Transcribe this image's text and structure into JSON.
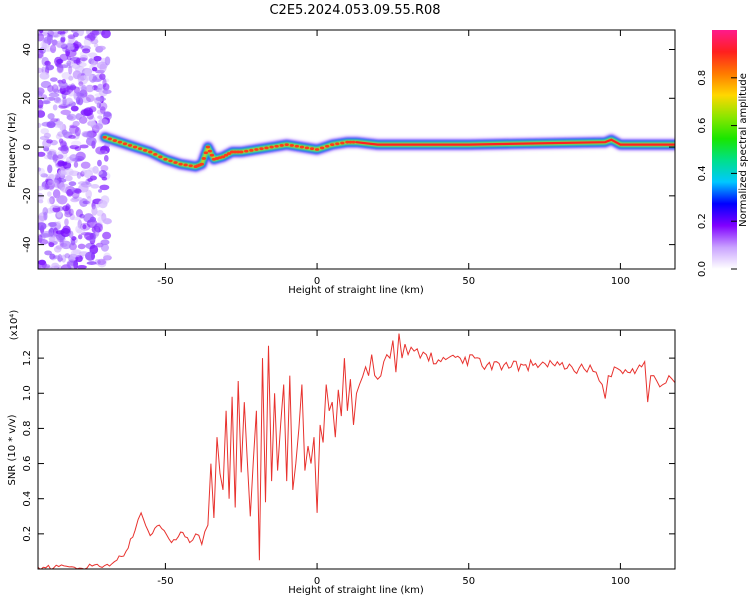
{
  "title": "C2E5.2024.053.09.55.R08",
  "colors": {
    "signal": "#e8322e",
    "frame": "#000000"
  },
  "chart_data": [
    {
      "type": "heatmap",
      "xlabel": "Height of straight line (km)",
      "ylabel": "Frequency (Hz)",
      "xlim": [
        -92,
        118
      ],
      "ylim": [
        -50,
        48
      ],
      "xticks": [
        -50,
        0,
        50,
        100
      ],
      "yticks": [
        -40,
        -20,
        0,
        20,
        40
      ],
      "colorbar": {
        "label": "Normalized spectral amplitude",
        "range": [
          0,
          1
        ],
        "ticks": [
          "0.0",
          "0.2",
          "0.4",
          "0.6",
          "0.8"
        ],
        "colormap": [
          "#ffffff",
          "#c9a2ff",
          "#8000ff",
          "#0000ff",
          "#00c8ff",
          "#00e08a",
          "#19e600",
          "#8be600",
          "#ffd700",
          "#ff7a00",
          "#ff1f1f",
          "#ff1a8c"
        ]
      },
      "ridge": {
        "x": [
          -70,
          -65,
          -60,
          -55,
          -50,
          -45,
          -40,
          -38,
          -36,
          -34,
          -31,
          -28,
          -25,
          -20,
          -15,
          -10,
          -5,
          0,
          5,
          10,
          13,
          20,
          50,
          95,
          97,
          100,
          118
        ],
        "y": [
          4,
          2,
          0,
          -2,
          -5,
          -7,
          -8,
          -7,
          0,
          -5,
          -4,
          -2,
          -2,
          -1,
          0,
          1,
          0,
          -1,
          1,
          2,
          2,
          1,
          1,
          2,
          3,
          1,
          1
        ]
      },
      "noise_region_x": [
        -92,
        -69
      ]
    },
    {
      "type": "line",
      "xlabel": "Height of straight line (km)",
      "ylabel": "SNR (10 * v/v)",
      "multiplier": "(x10⁴)",
      "xlim": [
        -92,
        118
      ],
      "ylim": [
        0,
        1.36
      ],
      "xticks": [
        -50,
        0,
        50,
        100
      ],
      "yticks": [
        0.2,
        0.4,
        0.6,
        0.8,
        1.0,
        1.2
      ],
      "series": [
        {
          "x": [
            -92,
            -80,
            -70,
            -66,
            -63,
            -60,
            -58,
            -55,
            -52,
            -48,
            -45,
            -42,
            -40,
            -38,
            -36,
            -35,
            -34,
            -33,
            -31,
            -30,
            -29,
            -28,
            -27,
            -26,
            -25,
            -24,
            -22,
            -20,
            -19,
            -18,
            -17,
            -16,
            -15,
            -14,
            -13,
            -11,
            -10,
            -9,
            -8,
            -7,
            -6,
            -5,
            -4,
            -3,
            -2,
            -1,
            0,
            1,
            2,
            3,
            4,
            5,
            6,
            7,
            8,
            9,
            10,
            11,
            12,
            13,
            14,
            16,
            17,
            18,
            20,
            22,
            24,
            25,
            26,
            27,
            28,
            29,
            30,
            32,
            34,
            36,
            40,
            44,
            48,
            52,
            56,
            60,
            64,
            68,
            72,
            76,
            80,
            84,
            88,
            90,
            92,
            94,
            95,
            96,
            98,
            100,
            104,
            107,
            108,
            109,
            110,
            112,
            114,
            116,
            118
          ],
          "y": [
            0.01,
            0.01,
            0.02,
            0.05,
            0.1,
            0.22,
            0.32,
            0.19,
            0.25,
            0.15,
            0.21,
            0.15,
            0.2,
            0.14,
            0.25,
            0.6,
            0.29,
            0.75,
            0.45,
            0.9,
            0.4,
            0.98,
            0.35,
            1.07,
            0.55,
            0.95,
            0.3,
            0.9,
            0.05,
            1.2,
            0.38,
            1.27,
            0.5,
            1.0,
            0.56,
            1.05,
            0.5,
            1.1,
            0.45,
            0.6,
            0.8,
            1.05,
            0.56,
            0.7,
            0.6,
            0.75,
            0.32,
            0.82,
            0.72,
            1.05,
            0.9,
            0.95,
            0.75,
            1.02,
            0.87,
            1.2,
            0.9,
            1.08,
            0.82,
            1.0,
            1.05,
            1.15,
            1.1,
            1.22,
            1.08,
            1.18,
            1.2,
            1.3,
            1.12,
            1.34,
            1.2,
            1.28,
            1.22,
            1.24,
            1.2,
            1.22,
            1.19,
            1.21,
            1.17,
            1.2,
            1.16,
            1.17,
            1.15,
            1.16,
            1.17,
            1.15,
            1.16,
            1.15,
            1.14,
            1.16,
            1.12,
            1.05,
            0.97,
            1.1,
            1.15,
            1.13,
            1.14,
            1.15,
            1.18,
            0.95,
            1.1,
            1.07,
            1.05,
            1.1,
            1.06
          ]
        }
      ]
    }
  ]
}
